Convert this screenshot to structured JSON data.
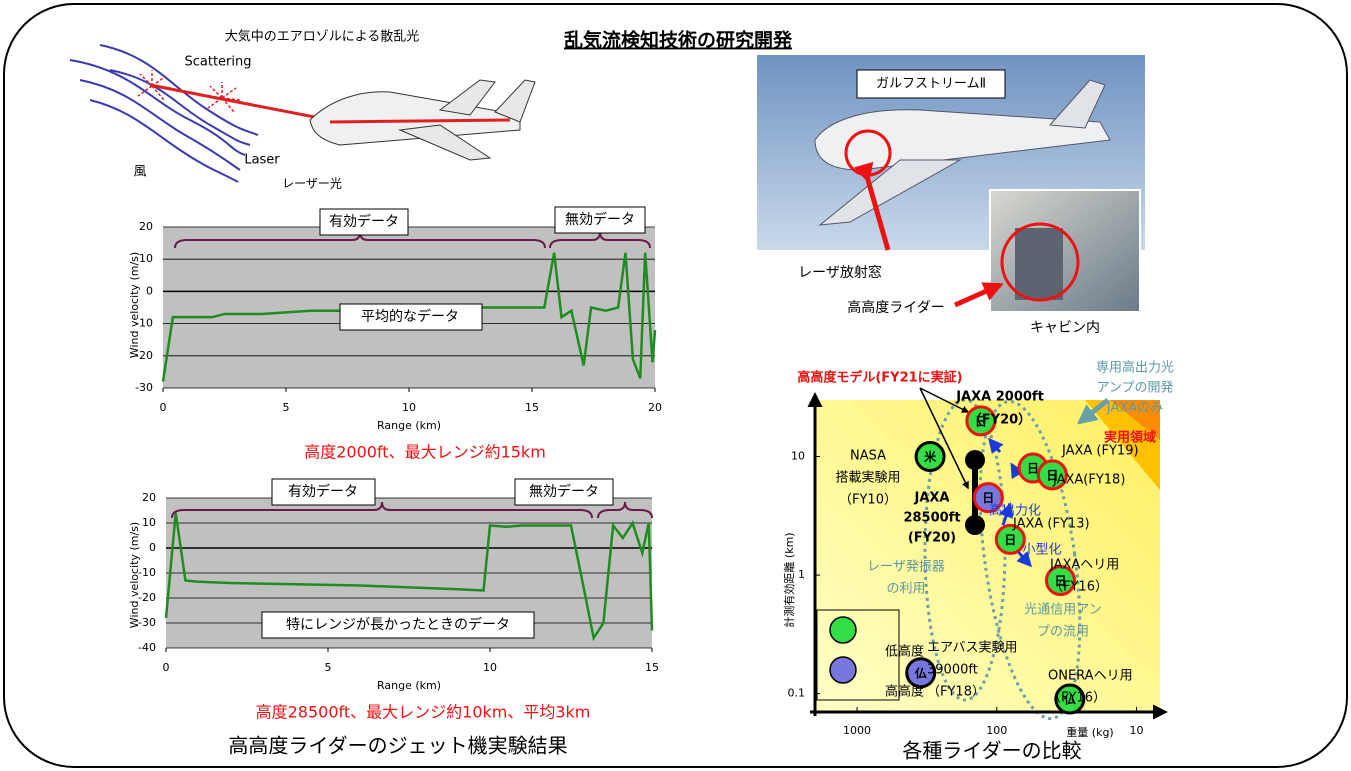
{
  "title": "乱気流検知技術の研究開発",
  "left_caption": "高高度ライダーのジェット機実験結果",
  "illustration": {
    "caption": "大気中のエアロゾルによる散乱光",
    "labels": [
      "Scattering",
      "Laser",
      "風",
      "レーザー光"
    ]
  },
  "photo": {
    "labels": [
      "ガルフストリームⅡ",
      "レーザ放射窓",
      "高高度ライダー",
      "キャビン内"
    ]
  },
  "chart_data": [
    {
      "type": "line",
      "xlabel": "Range (km)",
      "ylabel": "Wind velocity (m/s)",
      "color": "#1e8c1e",
      "x": [
        0,
        0.4,
        1,
        2,
        2.5,
        3,
        4,
        5,
        6,
        7,
        8,
        9,
        10,
        11,
        12,
        13,
        14,
        15,
        15.5,
        15.9,
        16.2,
        16.6,
        17.1,
        17.4,
        18,
        18.5,
        18.8,
        19.1,
        19.4,
        19.6,
        19.9,
        20
      ],
      "values": [
        -28,
        -8,
        -8,
        -8,
        -7,
        -7,
        -7,
        -6.5,
        -6,
        -6,
        -6,
        -6,
        -6,
        -5.5,
        -5.5,
        -5,
        -5,
        -5,
        -5,
        12,
        -8,
        -6,
        -23,
        -5,
        -6,
        -5,
        12,
        -21,
        -27,
        12,
        -22,
        -12
      ],
      "xlim": [
        0,
        20
      ],
      "xticks": [
        0,
        5,
        10,
        15,
        20
      ],
      "ylim": [
        -30,
        20
      ],
      "yticks": [
        -30,
        -20,
        -10,
        0,
        10,
        20
      ],
      "grid": true,
      "annotations": [
        "有効データ",
        "無効データ",
        "平均的なデータ"
      ],
      "caption": "高度2000ft、最大レンジ約15km"
    },
    {
      "type": "line",
      "xlabel": "Range (km)",
      "ylabel": "Wind velocity (m/s)",
      "color": "#1e8c1e",
      "x": [
        0,
        0.3,
        0.6,
        1,
        2,
        4,
        6,
        8,
        9,
        9.8,
        10,
        10.5,
        11,
        12,
        12.5,
        12.8,
        13.2,
        13.5,
        13.8,
        14.1,
        14.4,
        14.7,
        14.9,
        15
      ],
      "values": [
        -28,
        14,
        -13,
        -13.5,
        -14,
        -14.5,
        -15,
        -16,
        -16.5,
        -17,
        9,
        8.5,
        9,
        9,
        9,
        -10,
        -36,
        -30,
        9,
        4,
        10,
        -2,
        10,
        -33
      ],
      "xlim": [
        0,
        15
      ],
      "xticks": [
        0,
        5,
        10,
        15
      ],
      "ylim": [
        -40,
        20
      ],
      "yticks": [
        -40,
        -30,
        -20,
        -10,
        0,
        10,
        20
      ],
      "grid": true,
      "annotations": [
        "有効データ",
        "無効データ",
        "特にレンジが長かったときのデータ"
      ],
      "caption": "高度28500ft、最大レンジ約10km、平均3km"
    },
    {
      "type": "scatter",
      "xlabel": "重量 (kg)",
      "ylabel": "計測有効距離 (km)",
      "caption": "各種ライダーの比較",
      "xscale": "log",
      "yscale": "log",
      "x_reversed": true,
      "xlim": [
        2000,
        8
      ],
      "xticks": [
        1000,
        100,
        10
      ],
      "ylim": [
        0.07,
        30
      ],
      "yticks": [
        0.1,
        1,
        10
      ],
      "series": [
        {
          "name": "低高度",
          "color": "#33dd44",
          "x": [
            300,
            130,
            55,
            40,
            80,
            35,
            30
          ],
          "values": [
            10,
            20,
            8,
            7,
            2,
            0.9,
            0.09
          ],
          "markers": [
            "米",
            "日",
            "日",
            "日",
            "日",
            "日",
            "仏"
          ],
          "edgecolors": [
            "#000000",
            "#ee1111",
            "#ee1111",
            "#ee1111",
            "#ee1111",
            "#ee1111",
            "#000000"
          ],
          "labels": [
            [
              "NASA",
              "搭載実験用",
              "（FY10）"
            ],
            [
              "JAXA 2000ft",
              "（FY20）"
            ],
            [
              "JAXA (FY19)"
            ],
            [
              "JAXA(FY18)"
            ],
            [
              "JAXA (FY13)"
            ],
            [
              "JAXAヘリ用",
              "（FY16）"
            ],
            [
              "ONERAヘリ用",
              "（FY16）"
            ]
          ]
        },
        {
          "name": "高高度",
          "color": "#7777dd",
          "x": [
            115,
            350
          ],
          "values": [
            4.5,
            0.15
          ],
          "markers": [
            "日",
            "仏"
          ],
          "edgecolors": [
            "#ee1111",
            "#000000"
          ],
          "labels": [
            [
              "JAXA",
              "28500ft",
              "(FY20)"
            ],
            [
              "エアバス実験用",
              "39000ft",
              "（FY18）"
            ]
          ]
        }
      ],
      "annotations": [
        [
          "高高度モデル(FY21に実証)"
        ],
        [
          "専用高出力光",
          "アンプの開発",
          "JAXAのみ"
        ],
        [
          "実用領域"
        ],
        [
          "高出力化"
        ],
        [
          "小型化"
        ],
        [
          "レーザ発振器",
          "の利用"
        ],
        [
          "光通信用アン",
          "プの流用"
        ]
      ]
    }
  ]
}
